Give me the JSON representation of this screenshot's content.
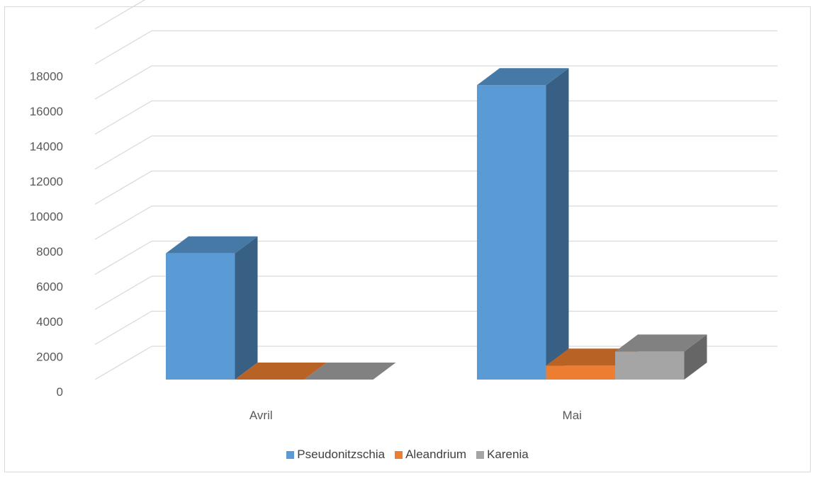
{
  "chart_data": {
    "type": "bar",
    "title": "",
    "xlabel": "",
    "ylabel": "",
    "categories": [
      "Avril",
      "Mai"
    ],
    "series": [
      {
        "name": "Pseudonitzschia",
        "values": [
          7200,
          16800
        ]
      },
      {
        "name": "Aleandrium",
        "values": [
          0,
          800
        ]
      },
      {
        "name": "Karenia",
        "values": [
          0,
          1600
        ]
      }
    ],
    "ylim": [
      0,
      18000
    ],
    "yticks": [
      "0",
      "2000",
      "4000",
      "6000",
      "8000",
      "10000",
      "12000",
      "14000",
      "16000",
      "18000"
    ],
    "grid": true,
    "legend_position": "bottom",
    "colors": {
      "Pseudonitzschia": "#5b9bd5",
      "Aleandrium": "#ed7d31",
      "Karenia": "#a5a5a5"
    }
  }
}
